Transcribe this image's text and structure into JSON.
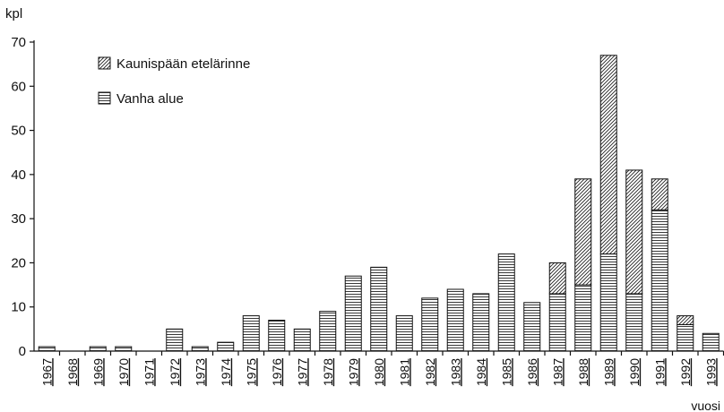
{
  "chart_data": {
    "type": "bar",
    "stacked": true,
    "title": "",
    "ylabel": "kpl",
    "xlabel": "vuosi",
    "ylim": [
      0,
      70
    ],
    "yticks": [
      0,
      10,
      20,
      30,
      40,
      50,
      60,
      70
    ],
    "categories": [
      "1967",
      "1968",
      "1969",
      "1970",
      "1971",
      "1972",
      "1973",
      "1974",
      "1975",
      "1976",
      "1977",
      "1978",
      "1979",
      "1980",
      "1981",
      "1982",
      "1983",
      "1984",
      "1985",
      "1986",
      "1987",
      "1988",
      "1989",
      "1990",
      "1991",
      "1992",
      "1993"
    ],
    "series": [
      {
        "name": "Vanha alue",
        "pattern": "horizontal-lines",
        "values": [
          1,
          0,
          1,
          1,
          0,
          5,
          1,
          2,
          8,
          7,
          5,
          9,
          17,
          19,
          8,
          12,
          14,
          13,
          22,
          11,
          13,
          15,
          22,
          13,
          32,
          6,
          4
        ]
      },
      {
        "name": "Kaunispään etelärinne",
        "pattern": "diagonal-lines",
        "values": [
          0,
          0,
          0,
          0,
          0,
          0,
          0,
          0,
          0,
          0,
          0,
          0,
          0,
          0,
          0,
          0,
          0,
          0,
          0,
          0,
          7,
          24,
          45,
          28,
          7,
          2,
          0
        ]
      }
    ],
    "legend": {
      "position": "top-left",
      "items": [
        "Kaunispään etelärinne",
        "Vanha alue"
      ]
    },
    "grid": false
  }
}
